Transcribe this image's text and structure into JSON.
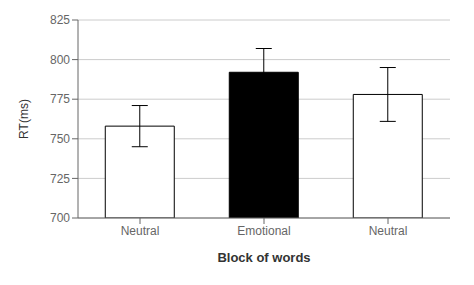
{
  "chart_data": {
    "type": "bar",
    "categories": [
      "Neutral",
      "Emotional",
      "Neutral"
    ],
    "values": [
      758,
      792,
      778
    ],
    "errors": [
      13,
      15,
      17
    ],
    "colors": [
      "#ffffff",
      "#000000",
      "#ffffff"
    ],
    "xlabel": "Block of words",
    "ylabel": "RT(ms)",
    "ylim": [
      700,
      825
    ],
    "yticks": [
      700,
      725,
      750,
      775,
      800,
      825
    ],
    "grid": true
  }
}
